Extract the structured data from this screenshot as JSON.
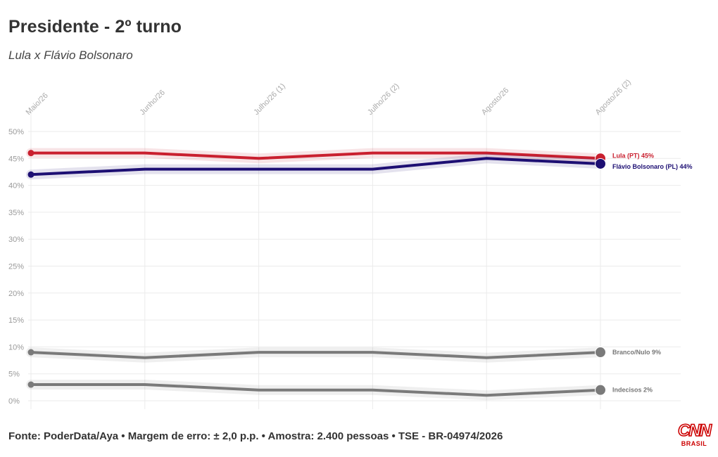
{
  "header": {
    "title": "Presidente - 2º turno",
    "subtitle": "Lula x Flávio Bolsonaro"
  },
  "footer": {
    "source": "Fonte: PoderData/Aya • Margem de erro: ± 2,0 p.p. • Amostra: 2.400 pessoas • TSE - BR-04974/2026"
  },
  "logo": {
    "name": "CNN",
    "sub": "BRASIL"
  },
  "chart_data": {
    "type": "line",
    "title": "Presidente - 2º turno",
    "subtitle": "Lula x Flávio Bolsonaro",
    "xlabel": "",
    "ylabel": "",
    "categories": [
      "Maio/26",
      "Junho/26",
      "Julho/26 (1)",
      "Julho/26 (2)",
      "Agosto/26",
      "Agosto/26 (2)"
    ],
    "y_ticks": [
      "0%",
      "5%",
      "10%",
      "15%",
      "20%",
      "25%",
      "30%",
      "35%",
      "40%",
      "45%",
      "50%"
    ],
    "ylim": [
      0,
      50
    ],
    "grid": true,
    "legend": "end-of-line labels",
    "series": [
      {
        "name": "Lula (PT)",
        "end_label": "Lula (PT) 45%",
        "color": "#c9202f",
        "values": [
          46,
          46,
          45,
          46,
          46,
          45
        ]
      },
      {
        "name": "Flávio Bolsonaro (PL)",
        "end_label": "Flávio Bolsonaro (PL) 44%",
        "color": "#1d0f73",
        "values": [
          42,
          43,
          43,
          43,
          45,
          44
        ]
      },
      {
        "name": "Branco/Nulo",
        "end_label": "Branco/Nulo 9%",
        "color": "#7a7a7a",
        "values": [
          9,
          8,
          9,
          9,
          8,
          9
        ]
      },
      {
        "name": "Indecisos",
        "end_label": "Indecisos 2%",
        "color": "#7a7a7a",
        "values": [
          3,
          3,
          2,
          2,
          1,
          2
        ]
      }
    ]
  }
}
